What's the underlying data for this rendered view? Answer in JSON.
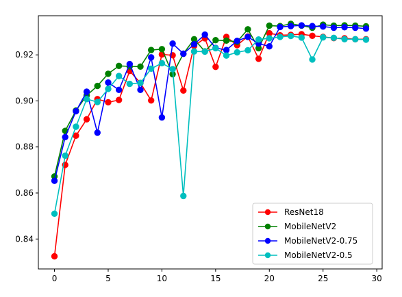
{
  "chart_data": {
    "type": "line",
    "title": "",
    "xlabel": "",
    "ylabel": "",
    "xlim": [
      -1.5,
      30.5
    ],
    "ylim": [
      0.827,
      0.937
    ],
    "xticks": [
      0,
      5,
      10,
      15,
      20,
      25,
      30
    ],
    "yticks": [
      0.84,
      0.86,
      0.88,
      0.9,
      0.92
    ],
    "ytick_labels": [
      "0.84",
      "0.86",
      "0.88",
      "0.90",
      "0.92"
    ],
    "grid": false,
    "legend_position": "lower-right",
    "x": [
      0,
      1,
      2,
      3,
      4,
      5,
      6,
      7,
      8,
      9,
      10,
      11,
      12,
      13,
      14,
      15,
      16,
      17,
      18,
      19,
      20,
      21,
      22,
      23,
      24,
      25,
      26,
      27,
      28,
      29
    ],
    "series": [
      {
        "name": "ResNet18",
        "color": "#ff0000",
        "values": [
          0.8325,
          0.8722,
          0.8849,
          0.892,
          0.9008,
          0.8994,
          0.9004,
          0.913,
          0.9078,
          0.9002,
          0.9202,
          0.9198,
          0.9045,
          0.9239,
          0.9272,
          0.9148,
          0.9278,
          0.9242,
          0.928,
          0.9183,
          0.9294,
          0.9285,
          0.9287,
          0.929,
          0.9283,
          0.9278,
          0.9273,
          0.9272,
          0.9268,
          0.9268
        ]
      },
      {
        "name": "MobileNetV2",
        "color": "#008000",
        "values": [
          0.8672,
          0.887,
          0.8958,
          0.9024,
          0.9065,
          0.9118,
          0.9152,
          0.915,
          0.9149,
          0.9221,
          0.9225,
          0.9116,
          0.9205,
          0.9268,
          0.9215,
          0.9264,
          0.9262,
          0.9257,
          0.9311,
          0.9229,
          0.9327,
          0.9325,
          0.9335,
          0.9327,
          0.9318,
          0.9331,
          0.9327,
          0.9328,
          0.9327,
          0.9324
        ]
      },
      {
        "name": "MobileNetV2-0.75",
        "color": "#0000ff",
        "values": [
          0.8653,
          0.8843,
          0.8955,
          0.904,
          0.8862,
          0.908,
          0.9048,
          0.916,
          0.9048,
          0.9189,
          0.8928,
          0.9249,
          0.9205,
          0.9246,
          0.9288,
          0.923,
          0.9221,
          0.9261,
          0.9278,
          0.9249,
          0.9237,
          0.9321,
          0.9325,
          0.9328,
          0.9325,
          0.9323,
          0.9318,
          0.932,
          0.9318,
          0.9314
        ]
      },
      {
        "name": "MobileNetV2-0.5",
        "color": "#00bfbf",
        "values": [
          0.851,
          0.8762,
          0.8888,
          0.9008,
          0.8995,
          0.9052,
          0.9108,
          0.9074,
          0.9078,
          0.914,
          0.9164,
          0.9138,
          0.8587,
          0.9215,
          0.9214,
          0.9229,
          0.9197,
          0.9211,
          0.922,
          0.9267,
          0.9272,
          0.9278,
          0.9282,
          0.9275,
          0.918,
          0.9276,
          0.9274,
          0.9268,
          0.9268,
          0.9266
        ]
      }
    ]
  }
}
